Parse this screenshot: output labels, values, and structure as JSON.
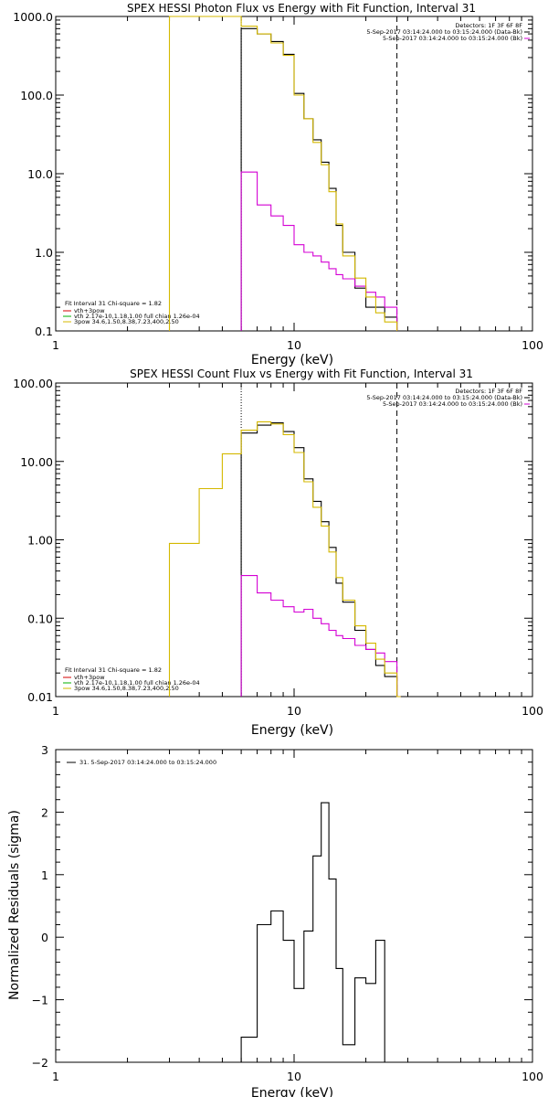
{
  "chart_data": [
    {
      "type": "line",
      "title": "SPEX HESSI Photon Flux vs Energy with Fit Function, Interval 31",
      "xlabel": "Energy (keV)",
      "ylabel": "",
      "xscale": "log",
      "yscale": "log",
      "xlim": [
        1,
        100
      ],
      "ylim": [
        0.1,
        1000
      ],
      "xticks": [
        "1",
        "10",
        "100"
      ],
      "yticks": [
        "0.1",
        "1.0",
        "10.0",
        "100.0",
        "1000.0"
      ],
      "legend_top_right": [
        "Detectors: 1F 3F 6F 8F",
        "5-Sep-2017 03:14:24.000 to 03:15:24.000 (Data-Bk)",
        "5-Sep-2017 03:14:24.000 to 03:15:24.000 (Bk)"
      ],
      "legend_bottom_left": [
        "Fit Interval 31   Chi-square = 1.82",
        "vth+3pow",
        "vth 2.17e-10,1.18,1.00  full chian 1.26e-04",
        "3pow 34.6,1.50,8.38,7.23,400,2.50"
      ],
      "vlines": {
        "fit_low": 6,
        "fit_high": 27
      },
      "edges": [
        6,
        7,
        8,
        9,
        10,
        11,
        12,
        13,
        14,
        15,
        16,
        18,
        20,
        22,
        24,
        27
      ],
      "series": [
        {
          "name": "Data-Bk",
          "color": "#000000",
          "values": [
            700,
            600,
            480,
            330,
            105,
            50,
            27,
            14,
            6.5,
            2.2,
            1.0,
            0.35,
            0.2,
            0.2,
            0.15
          ]
        },
        {
          "name": "Bk",
          "color": "#d400d4",
          "values": [
            10.5,
            4.0,
            2.9,
            2.2,
            1.25,
            1.0,
            0.9,
            0.75,
            0.62,
            0.52,
            0.46,
            0.37,
            0.31,
            0.27,
            0.2
          ]
        },
        {
          "name": "3pow",
          "color": "#d4b800",
          "steps": [
            [
              3,
              6,
              1000
            ],
            [
              6,
              7,
              750
            ],
            [
              7,
              8,
              600
            ],
            [
              8,
              9,
              460
            ],
            [
              9,
              10,
              320
            ],
            [
              10,
              11,
              100
            ],
            [
              11,
              12,
              50
            ],
            [
              12,
              13,
              25
            ],
            [
              13,
              14,
              13
            ],
            [
              14,
              15,
              5.9
            ],
            [
              15,
              16,
              2.3
            ],
            [
              16,
              18,
              0.9
            ],
            [
              18,
              20,
              0.47
            ],
            [
              20,
              22,
              0.27
            ],
            [
              22,
              24,
              0.17
            ],
            [
              24,
              27,
              0.13
            ]
          ]
        }
      ]
    },
    {
      "type": "line",
      "title": "SPEX HESSI Count Flux vs Energy with Fit Function, Interval 31",
      "xlabel": "Energy (keV)",
      "ylabel": "",
      "xscale": "log",
      "yscale": "log",
      "xlim": [
        1,
        100
      ],
      "ylim": [
        0.01,
        100
      ],
      "xticks": [
        "1",
        "10",
        "100"
      ],
      "yticks": [
        "0.01",
        "0.10",
        "1.00",
        "10.00",
        "100.00"
      ],
      "legend_top_right": [
        "Detectors: 1F 3F 6F 8F",
        "5-Sep-2017 03:14:24.000 to 03:15:24.000 (Data-Bk)",
        "5-Sep-2017 03:14:24.000 to 03:15:24.000 (Bk)"
      ],
      "legend_bottom_left": [
        "Fit Interval 31   Chi-square = 1.82",
        "vth+3pow",
        "vth 2.17e-10,1.18,1.00  full chian 1.26e-04",
        "3pow 34.6,1.50,8.38,7.23,400,2.50"
      ],
      "vlines": {
        "fit_low": 6,
        "fit_high": 27
      },
      "edges": [
        6,
        7,
        8,
        9,
        10,
        11,
        12,
        13,
        14,
        15,
        16,
        18,
        20,
        22,
        24,
        27,
        28
      ],
      "series": [
        {
          "name": "Data-Bk",
          "color": "#000000",
          "values": [
            23,
            29,
            31,
            24,
            15,
            6,
            3.1,
            1.7,
            0.8,
            0.28,
            0.16,
            0.07,
            0.04,
            0.025,
            0.018,
            0.01
          ]
        },
        {
          "name": "Bk",
          "color": "#d400d4",
          "values": [
            0.35,
            0.21,
            0.17,
            0.14,
            0.12,
            0.13,
            0.1,
            0.085,
            0.07,
            0.06,
            0.055,
            0.045,
            0.04,
            0.036,
            0.028,
            0.01
          ]
        },
        {
          "name": "3pow",
          "color": "#d4b800",
          "steps": [
            [
              3,
              4,
              0.9
            ],
            [
              4,
              5,
              4.5
            ],
            [
              5,
              6,
              12.5
            ],
            [
              6,
              7,
              25
            ],
            [
              7,
              8,
              32
            ],
            [
              8,
              9,
              30
            ],
            [
              9,
              10,
              22
            ],
            [
              10,
              11,
              13
            ],
            [
              11,
              12,
              5.5
            ],
            [
              12,
              13,
              2.6
            ],
            [
              13,
              14,
              1.5
            ],
            [
              14,
              15,
              0.7
            ],
            [
              15,
              16,
              0.33
            ],
            [
              16,
              18,
              0.17
            ],
            [
              18,
              20,
              0.08
            ],
            [
              20,
              22,
              0.048
            ],
            [
              22,
              24,
              0.03
            ],
            [
              24,
              27,
              0.02
            ],
            [
              27,
              28,
              0.01
            ]
          ]
        }
      ]
    },
    {
      "type": "line",
      "title": "",
      "xlabel": "Energy (keV)",
      "ylabel": "Normalized Residuals (sigma)",
      "xscale": "log",
      "xlim": [
        1,
        100
      ],
      "ylim": [
        -2,
        3
      ],
      "xticks": [
        "1",
        "10",
        "100"
      ],
      "yticks": [
        "−2",
        "−1",
        "0",
        "1",
        "2",
        "3"
      ],
      "legend_top_left": "31.  5-Sep-2017 03:14:24.000 to 03:15:24.000",
      "edges": [
        6,
        7,
        8,
        9,
        10,
        11,
        12,
        13,
        14,
        15,
        16,
        18,
        20,
        22,
        24,
        27
      ],
      "series": [
        {
          "name": "31.  5-Sep-2017 03:14:24.000 to 03:15:24.000",
          "color": "#000000",
          "values": [
            -1.6,
            0.2,
            0.42,
            -0.05,
            -0.82,
            0.1,
            1.3,
            2.15,
            0.93,
            -0.5,
            -1.72,
            -0.65,
            -0.74,
            -0.05,
            -2.0
          ]
        }
      ]
    }
  ]
}
